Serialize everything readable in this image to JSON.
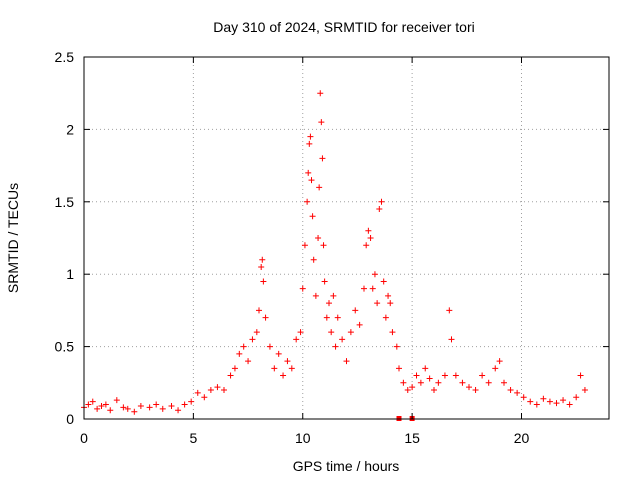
{
  "chart_data": {
    "type": "scatter",
    "title": "Day 310 of 2024, SRMTID for receiver tori",
    "xlabel": "GPS time / hours",
    "ylabel": "SRMTID / TECUs",
    "xlim": [
      0,
      24
    ],
    "ylim": [
      0,
      2.5
    ],
    "xticks": [
      0,
      5,
      10,
      15,
      20
    ],
    "xtick_labels": [
      "0",
      "5",
      "10",
      "15",
      "20"
    ],
    "yticks": [
      0,
      0.5,
      1,
      1.5,
      2,
      2.5
    ],
    "ytick_labels": [
      "0",
      "0.5",
      "1",
      "1.5",
      "2",
      "2.5"
    ],
    "grid": true,
    "marker": "+",
    "color": "#ff0000",
    "series": [
      {
        "name": "SRMTID",
        "x": [
          0.0,
          0.2,
          0.4,
          0.6,
          0.8,
          1.0,
          1.2,
          1.5,
          1.8,
          2.0,
          2.3,
          2.6,
          3.0,
          3.3,
          3.6,
          4.0,
          4.3,
          4.6,
          4.9,
          5.2,
          5.5,
          5.8,
          6.1,
          6.4,
          6.7,
          6.9,
          7.1,
          7.3,
          7.5,
          7.7,
          7.9,
          8.0,
          8.1,
          8.15,
          8.2,
          8.3,
          8.5,
          8.7,
          8.9,
          9.1,
          9.3,
          9.5,
          9.7,
          9.9,
          10.0,
          10.1,
          10.2,
          10.25,
          10.3,
          10.35,
          10.4,
          10.45,
          10.5,
          10.6,
          10.7,
          10.75,
          10.8,
          10.85,
          10.9,
          10.95,
          11.0,
          11.1,
          11.2,
          11.3,
          11.4,
          11.5,
          11.6,
          11.8,
          12.0,
          12.2,
          12.4,
          12.6,
          12.8,
          12.9,
          13.0,
          13.1,
          13.2,
          13.3,
          13.4,
          13.5,
          13.6,
          13.7,
          13.8,
          13.9,
          14.0,
          14.1,
          14.3,
          14.4,
          14.6,
          14.8,
          15.0,
          15.2,
          15.4,
          15.6,
          15.8,
          16.0,
          16.2,
          16.5,
          16.7,
          16.8,
          17.0,
          17.3,
          17.6,
          17.9,
          18.2,
          18.5,
          18.8,
          19.0,
          19.2,
          19.5,
          19.8,
          20.1,
          20.4,
          20.7,
          21.0,
          21.3,
          21.6,
          21.9,
          22.2,
          22.5,
          22.7,
          22.9
        ],
        "y": [
          0.08,
          0.1,
          0.12,
          0.07,
          0.09,
          0.1,
          0.06,
          0.13,
          0.08,
          0.07,
          0.05,
          0.09,
          0.08,
          0.1,
          0.07,
          0.09,
          0.06,
          0.1,
          0.12,
          0.18,
          0.15,
          0.2,
          0.22,
          0.2,
          0.3,
          0.35,
          0.45,
          0.5,
          0.4,
          0.55,
          0.6,
          0.75,
          1.05,
          1.1,
          0.95,
          0.7,
          0.5,
          0.35,
          0.45,
          0.3,
          0.4,
          0.35,
          0.55,
          0.6,
          0.9,
          1.2,
          1.5,
          1.7,
          1.9,
          1.95,
          1.65,
          1.4,
          1.1,
          0.85,
          1.25,
          1.6,
          2.25,
          2.05,
          1.8,
          1.2,
          0.95,
          0.7,
          0.8,
          0.6,
          0.85,
          0.5,
          0.7,
          0.55,
          0.4,
          0.6,
          0.75,
          0.65,
          0.9,
          1.2,
          1.3,
          1.25,
          0.9,
          1.0,
          0.8,
          1.45,
          1.5,
          0.95,
          0.7,
          0.85,
          0.8,
          0.6,
          0.5,
          0.35,
          0.25,
          0.2,
          0.22,
          0.3,
          0.25,
          0.35,
          0.28,
          0.2,
          0.25,
          0.3,
          0.75,
          0.55,
          0.3,
          0.25,
          0.22,
          0.2,
          0.3,
          0.25,
          0.35,
          0.4,
          0.25,
          0.2,
          0.18,
          0.15,
          0.12,
          0.1,
          0.14,
          0.12,
          0.11,
          0.13,
          0.1,
          0.15,
          0.3,
          0.2
        ]
      }
    ],
    "outliers": {
      "x": [
        14.4,
        15.0
      ],
      "y": [
        0.0,
        0.0
      ]
    }
  }
}
